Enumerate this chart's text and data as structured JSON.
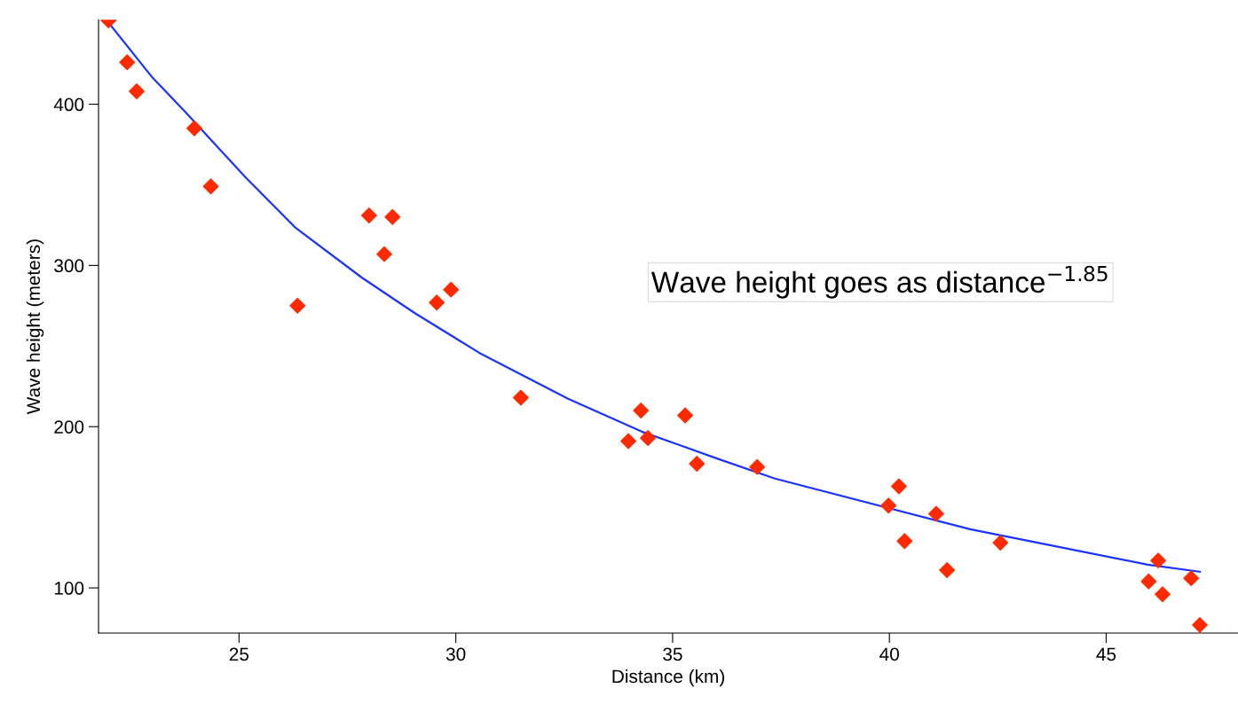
{
  "chart_data": {
    "type": "scatter",
    "xlabel": "Distance (km)",
    "ylabel": "Wave height (meters)",
    "xlim": [
      21.76,
      48.04
    ],
    "xticks": [
      25,
      30,
      35,
      40,
      45
    ],
    "ylim": [
      72,
      452.4
    ],
    "yticks": [
      100,
      200,
      300,
      400
    ],
    "grid": false,
    "legend": false,
    "annotations": [
      "Wave height goes as distance$^{−1.85}$"
    ],
    "series": [
      {
        "color": "#ff2a00",
        "marker": "diamond",
        "x": [
          21.99,
          22.42,
          22.64,
          23.97,
          24.35,
          26.35,
          28.0,
          28.35,
          28.54,
          29.56,
          29.89,
          31.5,
          33.98,
          34.27,
          34.43,
          35.29,
          35.56,
          36.95,
          39.98,
          40.22,
          40.35,
          41.08,
          41.33,
          42.56,
          45.98,
          46.2,
          46.3,
          46.96,
          47.16
        ],
        "values": [
          452,
          426,
          408,
          385,
          349,
          275,
          331,
          307,
          330,
          277,
          285,
          218,
          191,
          210,
          193,
          207,
          177,
          175,
          151,
          163,
          129,
          146,
          111,
          128,
          104,
          117,
          96,
          106,
          77
        ]
      },
      {
        "type": "line",
        "color": "#1a33ff",
        "marker": "none",
        "line_style": "solid",
        "x": [
          21.99,
          23.0,
          23.78,
          25.15,
          26.31,
          27.83,
          29.05,
          30.54,
          32.59,
          34.29,
          36.01,
          37.36,
          41.86,
          43.91,
          45.96,
          47.16
        ],
        "values": [
          450.7,
          416.6,
          394.7,
          354.6,
          323.2,
          292.5,
          270.5,
          245.8,
          217.3,
          196.9,
          180.4,
          167.8,
          136.4,
          125.4,
          114.4,
          110.0
        ]
      }
    ]
  }
}
